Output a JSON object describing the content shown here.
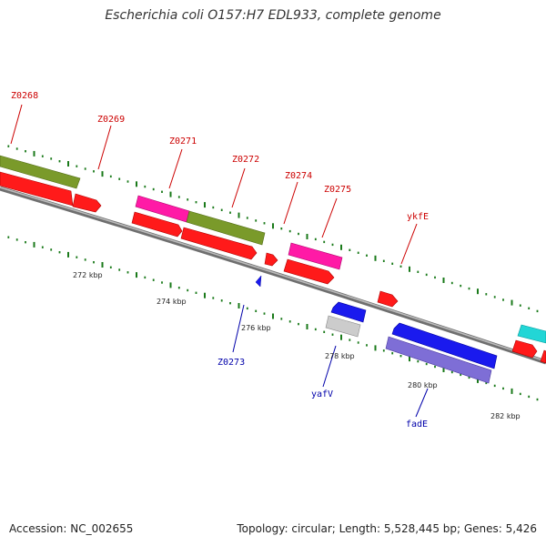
{
  "title": "Escherichia coli O157:H7 EDL933, complete genome",
  "footer": {
    "accession": "Accession: NC_002655",
    "stats": "Topology: circular; Length: 5,528,445 bp; Genes: 5,426"
  },
  "colors": {
    "forward_label": "#cc0000",
    "reverse_label": "#0000aa",
    "tick": "#1a7a1a",
    "backbone": "#8c8c8c",
    "cds_red": "#ff1a1a",
    "olive": "#7a9a2a",
    "magenta": "#ff1aa6",
    "blue": "#1a1aee",
    "violet": "#7e6ed6",
    "grey": "#cccccc",
    "cyan": "#22d6d6"
  },
  "kbp_labels": [
    "272 kbp",
    "274 kbp",
    "276 kbp",
    "278 kbp",
    "280 kbp",
    "282 kbp"
  ],
  "gene_labels_forward": [
    "Z0268",
    "Z0269",
    "Z0271",
    "Z0272",
    "Z0274",
    "Z0275",
    "ykfE"
  ],
  "gene_labels_reverse": [
    "Z0273",
    "yafV",
    "fadE"
  ]
}
